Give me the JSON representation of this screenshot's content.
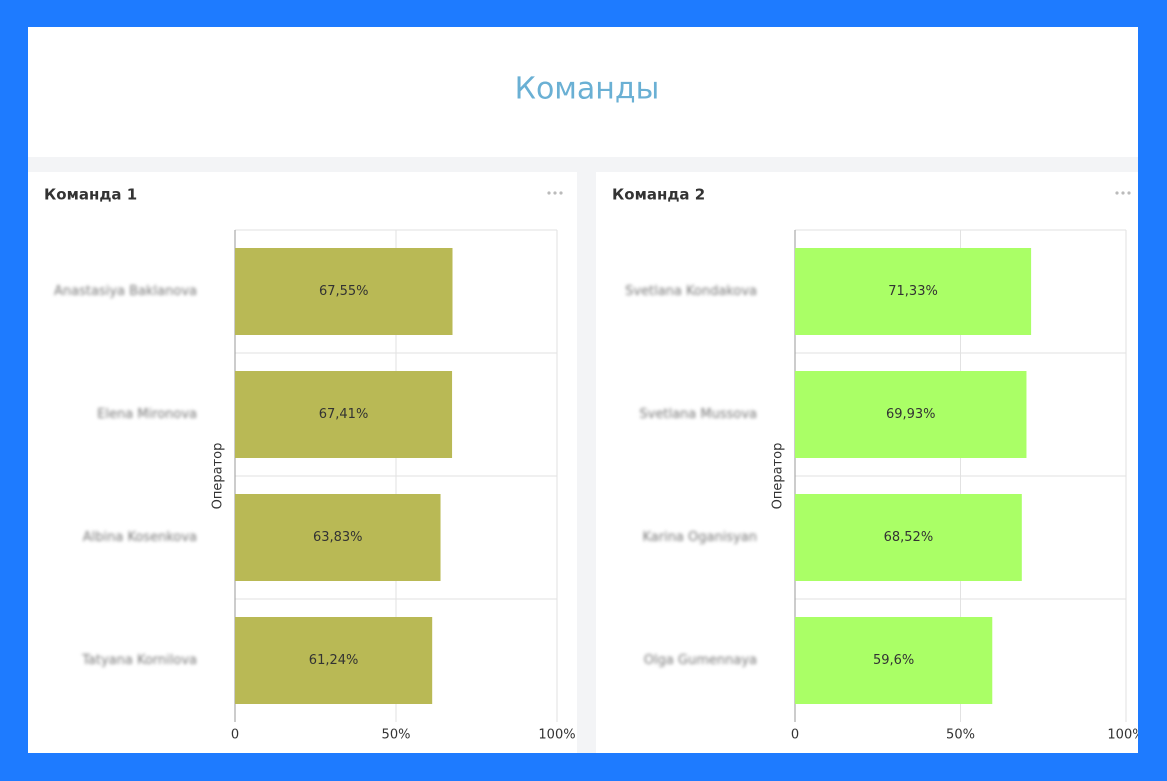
{
  "page_title": "Команды",
  "chart_data": [
    {
      "type": "bar",
      "orientation": "horizontal",
      "title": "Команда 1",
      "y_label": "Оператор",
      "categories": [
        "Anastasiya Baklanova",
        "Elena Mironova",
        "Albina Kosenkova",
        "Tatyana Kornilova"
      ],
      "values": [
        67.55,
        67.41,
        63.83,
        61.24
      ],
      "value_labels": [
        "67,55%",
        "67,41%",
        "63,83%",
        "61,24%"
      ],
      "color": "#b9b955",
      "xlim": [
        0,
        100
      ],
      "xticks": [
        0,
        {
          "value": 50,
          "label": "50%"
        },
        {
          "value": 100,
          "label": "100%"
        }
      ],
      "grid": true
    },
    {
      "type": "bar",
      "orientation": "horizontal",
      "title": "Команда 2",
      "y_label": "Оператор",
      "categories": [
        "Svetlana Kondakova",
        "Svetlana Mussova",
        "Karina Oganisyan",
        "Olga Gumennaya"
      ],
      "values": [
        71.33,
        69.93,
        68.52,
        59.6
      ],
      "value_labels": [
        "71,33%",
        "69,93%",
        "68,52%",
        "59,6%"
      ],
      "color": "#aaff66",
      "xlim": [
        0,
        100
      ],
      "xticks": [
        0,
        {
          "value": 50,
          "label": "50%"
        },
        {
          "value": 100,
          "label": "100%"
        }
      ],
      "grid": true
    }
  ]
}
